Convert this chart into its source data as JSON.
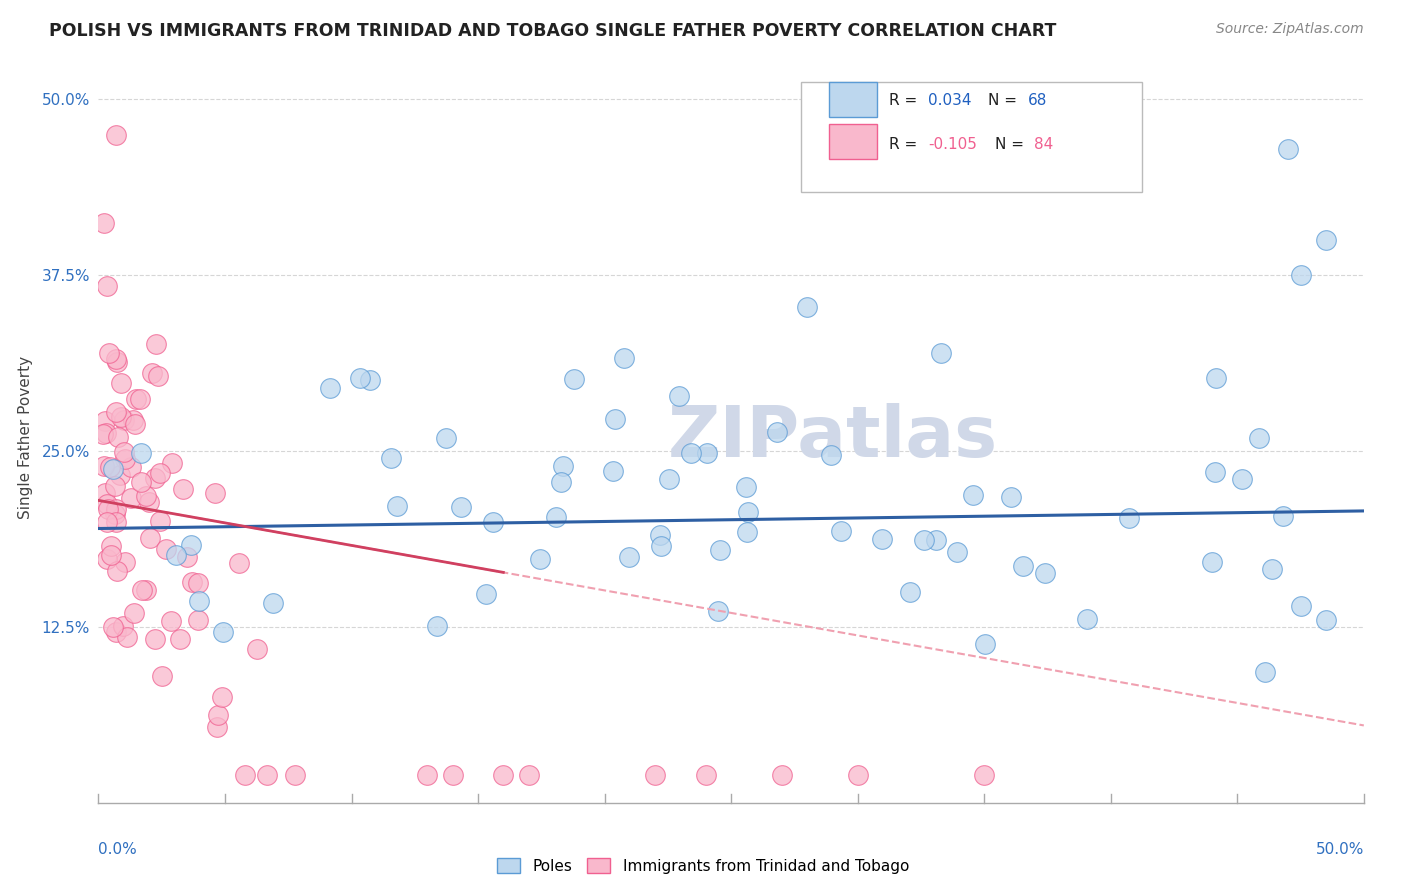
{
  "title": "POLISH VS IMMIGRANTS FROM TRINIDAD AND TOBAGO SINGLE FATHER POVERTY CORRELATION CHART",
  "source": "Source: ZipAtlas.com",
  "ylabel": "Single Father Poverty",
  "xlim": [
    0.0,
    0.5
  ],
  "ylim": [
    0.0,
    0.52
  ],
  "yticks": [
    0.125,
    0.25,
    0.375,
    0.5
  ],
  "ytick_labels": [
    "12.5%",
    "25.0%",
    "37.5%",
    "50.0%"
  ],
  "poles_R": 0.034,
  "poles_N": 68,
  "tt_R": -0.105,
  "tt_N": 84,
  "poles_color_edge": "#5b9bd5",
  "poles_color_fill": "#bdd7ee",
  "tt_color_edge": "#f06090",
  "tt_color_fill": "#f9b8cc",
  "trend_blue": "#2e5fa3",
  "trend_pink_solid": "#d04060",
  "trend_pink_dash": "#f0a0b0",
  "watermark_color": "#d0d8e8",
  "legend_R_color": "#2060c0",
  "legend_N_color": "#2060c0"
}
